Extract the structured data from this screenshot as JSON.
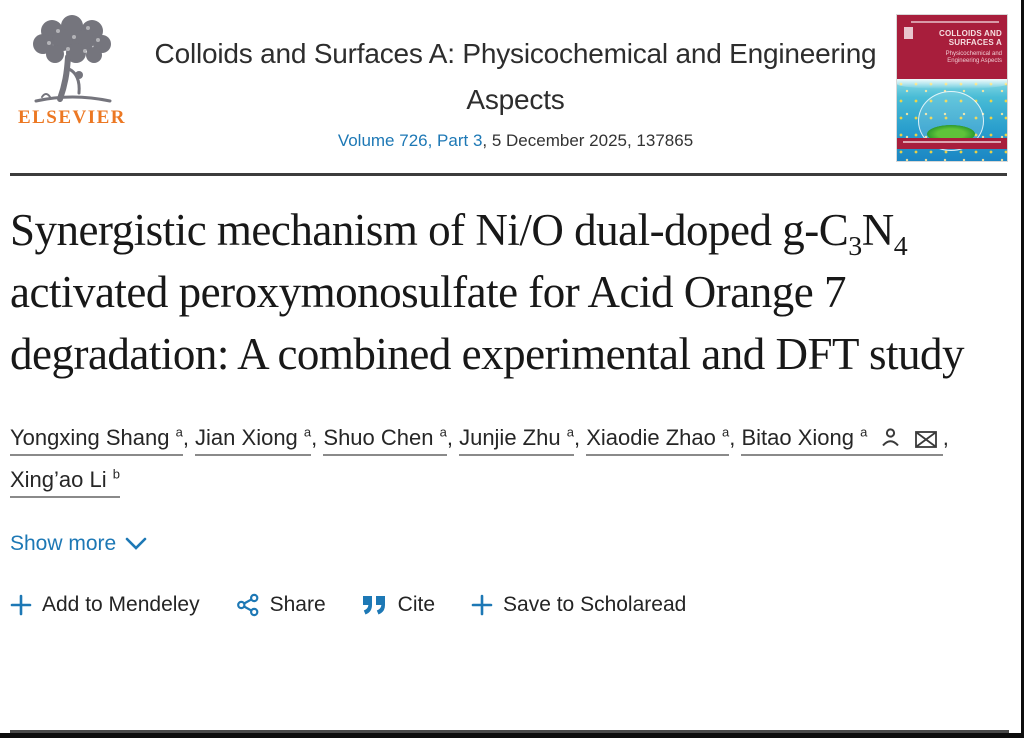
{
  "journal": {
    "publisher": "ELSEVIER",
    "name": "Colloids and Surfaces A: Physicochemical and Engineering Aspects",
    "volume_link": "Volume 726, Part 3",
    "issue_details": ", 5 December 2025, 137865"
  },
  "cover": {
    "title": "COLLOIDS AND SURFACES A",
    "subtitle": "Physicochemical and Engineering Aspects"
  },
  "article": {
    "title_segments": [
      {
        "text": "Synergistic mechanism of Ni/O dual-doped g-C"
      },
      {
        "text": "3",
        "sub": true
      },
      {
        "text": "N"
      },
      {
        "text": "4",
        "sub": true
      },
      {
        "text": " activated peroxymonosulfate for Acid Orange 7 degradation: A combined experimental and DFT study"
      }
    ]
  },
  "authors": {
    "separator": ", ",
    "list": [
      {
        "name": "Yongxing Shang",
        "affiliation_sup": "a"
      },
      {
        "name": "Jian Xiong",
        "affiliation_sup": "a"
      },
      {
        "name": "Shuo Chen",
        "affiliation_sup": "a"
      },
      {
        "name": "Junjie Zhu",
        "affiliation_sup": "a"
      },
      {
        "name": "Xiaodie Zhao",
        "affiliation_sup": "a"
      },
      {
        "name": "Bitao Xiong",
        "affiliation_sup": "a",
        "corresponding": true
      },
      {
        "name": "Xing’ao Li",
        "affiliation_sup": "b"
      }
    ]
  },
  "show_more": {
    "label": "Show more"
  },
  "actions": {
    "add_to_mendeley": "Add to Mendeley",
    "share": "Share",
    "cite": "Cite",
    "save_to_scholaread": "Save to Scholaread"
  },
  "colors": {
    "link_blue": "#1d78b5",
    "elsevier_orange": "#ec7823",
    "cover_red": "#a81e3c",
    "text_dark": "#212121"
  }
}
